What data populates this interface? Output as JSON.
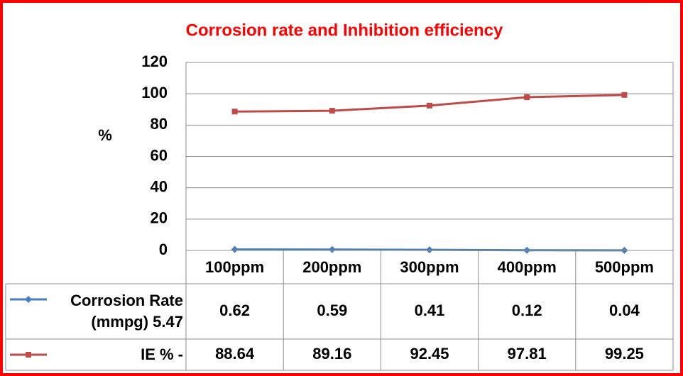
{
  "chart_data": {
    "type": "line",
    "title": "Corrosion rate and Inhibition efficiency",
    "y_label": "%",
    "categories": [
      "100ppm",
      "200ppm",
      "300ppm",
      "400ppm",
      "500ppm"
    ],
    "series": [
      {
        "name": "Corrosion Rate (mmpg) 5.47",
        "color": "#4a7ebb",
        "marker": "diamond",
        "values": [
          0.62,
          0.59,
          0.41,
          0.12,
          0.04
        ]
      },
      {
        "name": "IE % -",
        "color": "#be4b48",
        "marker": "square",
        "values": [
          88.64,
          89.16,
          92.45,
          97.81,
          99.25
        ]
      }
    ],
    "ylim": [
      0,
      120
    ],
    "yticks": [
      0,
      20,
      40,
      60,
      80,
      100,
      120
    ],
    "grid": true,
    "data_table": true,
    "title_color": "#ff0000",
    "border_color": "#ff0000"
  }
}
